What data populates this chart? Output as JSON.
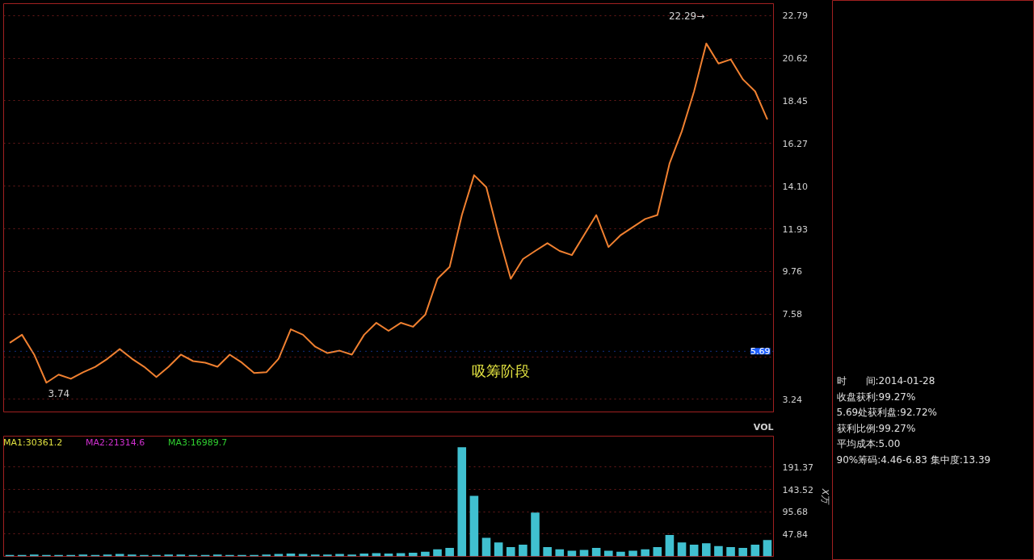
{
  "chart_data": [
    {
      "type": "line",
      "categories": [
        null,
        null,
        null,
        null,
        null,
        null,
        null,
        null,
        null,
        null,
        null,
        null,
        null,
        null,
        null,
        null,
        null,
        null,
        null,
        null,
        null,
        null,
        null,
        null,
        null,
        null,
        null,
        null,
        null,
        null,
        null,
        null,
        null,
        null,
        null,
        null,
        null,
        null,
        null,
        null,
        null,
        null,
        null,
        null,
        null,
        null,
        null,
        null,
        null,
        null,
        null,
        null,
        null,
        null,
        null,
        null,
        null,
        null,
        null,
        null,
        null,
        null,
        null
      ],
      "series": [
        {
          "color": "#f08030",
          "values": [
            6.12,
            6.53,
            5.52,
            4.09,
            4.5,
            4.29,
            4.62,
            4.9,
            5.31,
            5.8,
            5.31,
            4.9,
            4.38,
            4.9,
            5.52,
            5.19,
            5.11,
            4.9,
            5.52,
            5.11,
            4.58,
            4.62,
            5.31,
            6.81,
            6.53,
            5.92,
            5.6,
            5.72,
            5.52,
            6.53,
            7.14,
            6.73,
            7.14,
            6.94,
            7.55,
            9.38,
            9.99,
            12.63,
            14.66,
            14.05,
            11.61,
            9.38,
            10.39,
            10.8,
            11.2,
            10.8,
            10.59,
            11.61,
            12.63,
            11.0,
            11.61,
            12.02,
            12.43,
            12.63,
            15.27,
            16.9,
            18.93,
            21.37,
            20.35,
            20.56,
            19.54,
            18.93,
            17.5
          ]
        }
      ],
      "ylim": [
        2.6,
        23.4
      ],
      "yticks": [
        3.24,
        {
          "value": 5.41,
          "label": null
        },
        7.58,
        9.76,
        11.93,
        {
          "value": 14.1,
          "label": "14.10"
        },
        16.27,
        18.45,
        20.62,
        22.79
      ],
      "grid": "y",
      "tick_labels": "y",
      "annotations": [
        "22.29→",
        "3.74",
        "吸筹阶段"
      ],
      "ref_lines": [
        {
          "axis": "y",
          "value": 5.69,
          "label": "5.69",
          "color": "#2060ff"
        }
      ]
    },
    {
      "type": "bar",
      "title": "VOL",
      "ylabel": "X万",
      "categories": [
        null,
        null,
        null,
        null,
        null,
        null,
        null,
        null,
        null,
        null,
        null,
        null,
        null,
        null,
        null,
        null,
        null,
        null,
        null,
        null,
        null,
        null,
        null,
        null,
        null,
        null,
        null,
        null,
        null,
        null,
        null,
        null,
        null,
        null,
        null,
        null,
        null,
        null,
        null,
        null,
        null,
        null,
        null,
        null,
        null,
        null,
        null,
        null,
        null,
        null,
        null,
        null,
        null,
        null,
        null,
        null,
        null,
        null,
        null,
        null,
        null,
        null,
        null
      ],
      "series": [
        {
          "color": "#40c0d0",
          "values": [
            3,
            3,
            4,
            3,
            3,
            3,
            4,
            3,
            4,
            5,
            4,
            3,
            3,
            4,
            4,
            3,
            3,
            4,
            3,
            3,
            3,
            4,
            5,
            6,
            5,
            4,
            4,
            5,
            4,
            6,
            7,
            6,
            7,
            8,
            10,
            15,
            18,
            234,
            130,
            40,
            30,
            20,
            25,
            94,
            20,
            15,
            12,
            14,
            18,
            12,
            10,
            12,
            15,
            20,
            46,
            30,
            25,
            28,
            22,
            20,
            18,
            25,
            35
          ]
        }
      ],
      "ylim": [
        0,
        258
      ],
      "yticks": [
        47.84,
        95.68,
        143.52,
        191.37
      ],
      "grid": "y",
      "tick_labels": "y",
      "annotations": [
        "MA1:30361.2",
        "MA2:21314.6",
        "MA3:16989.7"
      ]
    },
    {
      "type": "other",
      "annotations": [
        "时　　间:2014-01-28",
        "收盘获利:99.27%",
        "5.69处获利盘:92.72%",
        "获利比例:99.27%",
        "平均成本:5.00",
        "90%筹码:4.46-6.83  集中度:13.39"
      ]
    }
  ]
}
